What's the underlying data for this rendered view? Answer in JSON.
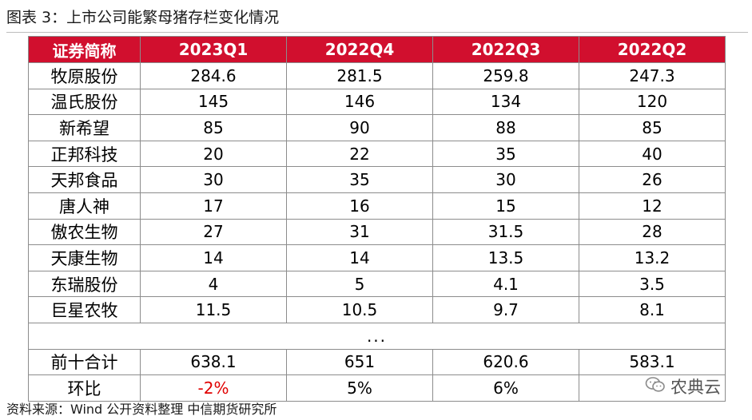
{
  "title": "图表 3：上市公司能繁母猪存栏变化情况",
  "table": {
    "headers": [
      "证券简称",
      "2023Q1",
      "2022Q4",
      "2022Q3",
      "2022Q2"
    ],
    "rows": [
      [
        "牧原股份",
        "284.6",
        "281.5",
        "259.8",
        "247.3"
      ],
      [
        "温氏股份",
        "145",
        "146",
        "134",
        "120"
      ],
      [
        "新希望",
        "85",
        "90",
        "88",
        "85"
      ],
      [
        "正邦科技",
        "20",
        "22",
        "35",
        "40"
      ],
      [
        "天邦食品",
        "30",
        "35",
        "30",
        "26"
      ],
      [
        "唐人神",
        "17",
        "16",
        "15",
        "12"
      ],
      [
        "傲农生物",
        "27",
        "31",
        "31.5",
        "28"
      ],
      [
        "天康生物",
        "14",
        "14",
        "13.5",
        "13.2"
      ],
      [
        "东瑞股份",
        "4",
        "5",
        "4.1",
        "3.5"
      ],
      [
        "巨星农牧",
        "11.5",
        "10.5",
        "9.7",
        "8.1"
      ]
    ],
    "ellipsis": "...",
    "total": [
      "前十合计",
      "638.1",
      "651",
      "620.6",
      "583.1"
    ],
    "change": [
      "环比",
      "-2%",
      "5%",
      "6%",
      ""
    ]
  },
  "negative_color": "#e00000",
  "header_color": "#d10f2e",
  "source": "资料来源：Wind 公开资料整理 中信期货研究所",
  "watermark": {
    "text": "农典云",
    "icon": "wechat-logo-icon"
  }
}
